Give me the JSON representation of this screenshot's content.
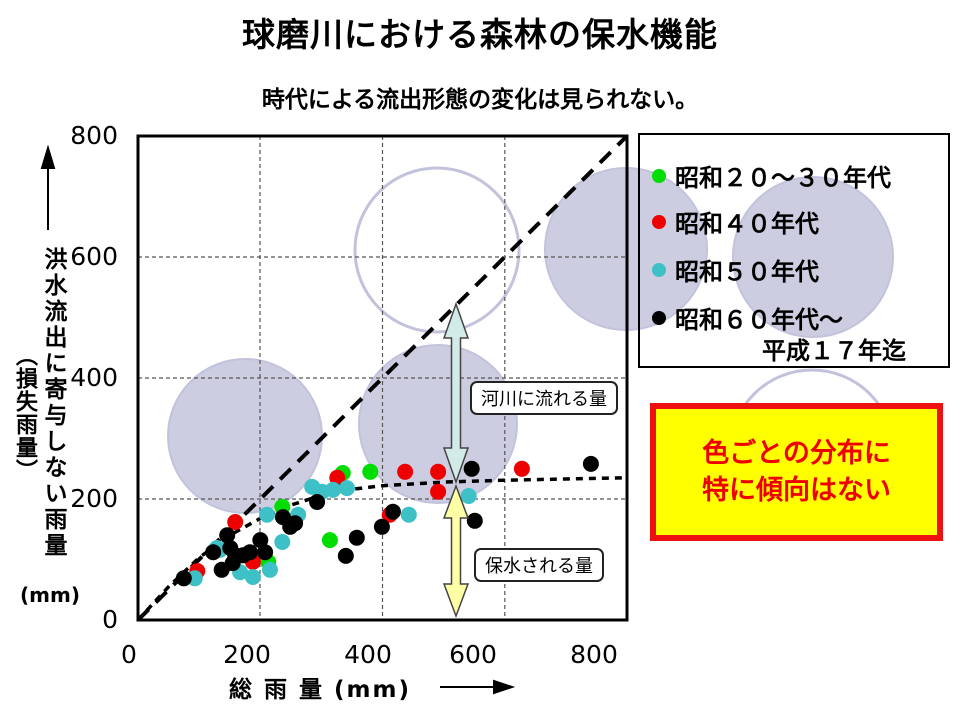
{
  "page": {
    "title": "球磨川における森林の保水機能",
    "subtitle": "時代による流出形態の変化は見られない。"
  },
  "legend": {
    "items": [
      {
        "label": "昭和２０～３０年代",
        "color": "#00dd00"
      },
      {
        "label": "昭和４０年代",
        "color": "#ee0000"
      },
      {
        "label": "昭和５０年代",
        "color": "#3ec1c6"
      },
      {
        "label": "昭和６０年代～",
        "label2": "平成１７年迄",
        "color": "#000000"
      }
    ]
  },
  "callout": {
    "line1": "色ごとの分布に",
    "line2": "特に傾向はない",
    "bg": "#ffff00",
    "border": "#ee1111",
    "text_color": "#ee0000"
  },
  "annotations": {
    "river_flow_label": "河川に流れる量",
    "retained_label": "保水される量"
  },
  "chart_data": {
    "type": "scatter",
    "title": "球磨川における森林の保水機能",
    "xlabel": "総 雨 量 (mm)",
    "ylabel": "洪水流出に寄与しない雨量",
    "ylabel_paren": "（損失雨量）",
    "y_unit": "(mm)",
    "xlim": [
      0,
      800
    ],
    "ylim": [
      0,
      800
    ],
    "x_ticks": [
      0,
      200,
      400,
      600,
      800
    ],
    "y_ticks": [
      800,
      600,
      400,
      200,
      0
    ],
    "grid": true,
    "legend_position": "outside-right",
    "reference_line": {
      "name": "1:1 line",
      "from": [
        0,
        0
      ],
      "to": [
        800,
        800
      ],
      "style": "long-dash"
    },
    "trend_curve": {
      "name": "loss-rainfall saturation curve",
      "style": "short-dash",
      "points": [
        [
          0,
          0
        ],
        [
          50,
          55
        ],
        [
          100,
          103
        ],
        [
          150,
          140
        ],
        [
          200,
          168
        ],
        [
          250,
          190
        ],
        [
          300,
          206
        ],
        [
          350,
          216
        ],
        [
          400,
          222
        ],
        [
          500,
          228
        ],
        [
          600,
          231
        ],
        [
          700,
          233
        ],
        [
          800,
          235
        ]
      ]
    },
    "series": [
      {
        "name": "昭和２０～３０年代",
        "color": "#00dd00",
        "points": [
          [
            380,
            245
          ],
          [
            335,
            243
          ],
          [
            236,
            187
          ],
          [
            213,
            96
          ],
          [
            314,
            132
          ]
        ]
      },
      {
        "name": "昭和４０年代",
        "color": "#ee0000",
        "points": [
          [
            437,
            245
          ],
          [
            491,
            245
          ],
          [
            628,
            250
          ],
          [
            491,
            212
          ],
          [
            412,
            174
          ],
          [
            326,
            235
          ],
          [
            159,
            162
          ],
          [
            188,
            96
          ],
          [
            97,
            81
          ]
        ]
      },
      {
        "name": "昭和５０年代",
        "color": "#3ec1c6",
        "points": [
          [
            541,
            205
          ],
          [
            443,
            174
          ],
          [
            285,
            220
          ],
          [
            301,
            212
          ],
          [
            319,
            215
          ],
          [
            342,
            218
          ],
          [
            211,
            174
          ],
          [
            236,
            129
          ],
          [
            134,
            116
          ],
          [
            216,
            83
          ],
          [
            188,
            71
          ],
          [
            93,
            69
          ],
          [
            129,
            119
          ],
          [
            167,
            79
          ],
          [
            262,
            174
          ]
        ]
      },
      {
        "name": "昭和６０年代～平成１７年迄",
        "color": "#000000",
        "points": [
          [
            546,
            250
          ],
          [
            741,
            258
          ],
          [
            417,
            179
          ],
          [
            399,
            154
          ],
          [
            358,
            136
          ],
          [
            551,
            164
          ],
          [
            340,
            106
          ],
          [
            293,
            195
          ],
          [
            146,
            140
          ],
          [
            237,
            170
          ],
          [
            249,
            154
          ],
          [
            183,
            112
          ],
          [
            159,
            107
          ],
          [
            200,
            132
          ],
          [
            208,
            112
          ],
          [
            137,
            83
          ],
          [
            75,
            69
          ],
          [
            155,
            94
          ],
          [
            172,
            107
          ],
          [
            123,
            112
          ],
          [
            257,
            160
          ],
          [
            151,
            119
          ]
        ]
      }
    ]
  }
}
